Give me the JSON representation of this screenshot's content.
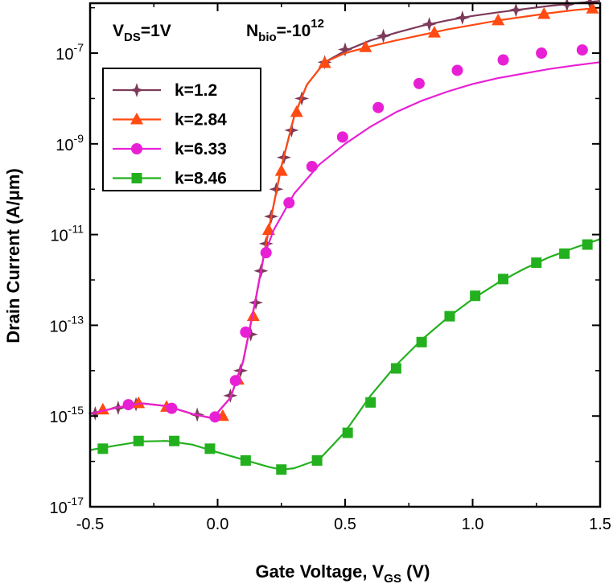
{
  "chart_data": {
    "type": "line",
    "xlabel": "Gate Voltage, V",
    "xlabel_sub": "GS",
    "xlabel_unit": " (V)",
    "ylabel": "Drain Current  (A/μm)",
    "xlim": [
      -0.5,
      1.5
    ],
    "ylim_log10": [
      -17,
      -5.9
    ],
    "yscale": "log",
    "x_ticks": [
      -0.5,
      0.0,
      0.5,
      1.0,
      1.5
    ],
    "x_tick_labels": [
      "-0.5",
      "0.0",
      "0.5",
      "1.0",
      "1.5"
    ],
    "y_ticks_log10": [
      -17,
      -15,
      -13,
      -11,
      -9,
      -7
    ],
    "y_tick_labels": [
      {
        "base": "10",
        "exp": "-17"
      },
      {
        "base": "10",
        "exp": "-15"
      },
      {
        "base": "10",
        "exp": "-13"
      },
      {
        "base": "10",
        "exp": "-11"
      },
      {
        "base": "10",
        "exp": "-9"
      },
      {
        "base": "10",
        "exp": "-7"
      }
    ],
    "annotations": [
      {
        "main": "V",
        "sub": "DS",
        "rest": "=1V"
      },
      {
        "main": "N",
        "sub": "bio",
        "rest": "=-10",
        "sup": "12"
      }
    ],
    "legend_position": "upper-left",
    "series": [
      {
        "name": "k=1.2",
        "color": "#7d3a5a",
        "marker": "star4",
        "curve": [
          [
            -0.5,
            -14.95
          ],
          [
            -0.4,
            -14.82
          ],
          [
            -0.3,
            -14.72
          ],
          [
            -0.2,
            -14.78
          ],
          [
            -0.1,
            -14.95
          ],
          [
            -0.02,
            -15.05
          ],
          [
            0.05,
            -14.6
          ],
          [
            0.1,
            -13.8
          ],
          [
            0.15,
            -12.4
          ],
          [
            0.2,
            -10.9
          ],
          [
            0.25,
            -9.5
          ],
          [
            0.3,
            -8.4
          ],
          [
            0.35,
            -7.7
          ],
          [
            0.42,
            -7.2
          ],
          [
            0.5,
            -6.95
          ],
          [
            0.6,
            -6.72
          ],
          [
            0.7,
            -6.55
          ],
          [
            0.8,
            -6.4
          ],
          [
            0.9,
            -6.28
          ],
          [
            1.0,
            -6.18
          ],
          [
            1.1,
            -6.1
          ],
          [
            1.2,
            -6.03
          ],
          [
            1.3,
            -5.96
          ],
          [
            1.4,
            -5.9
          ],
          [
            1.5,
            -5.85
          ]
        ],
        "markers": [
          [
            -0.48,
            -14.94
          ],
          [
            -0.39,
            -14.82
          ],
          [
            -0.32,
            -14.74
          ],
          [
            -0.08,
            -14.97
          ],
          [
            0.05,
            -14.55
          ],
          [
            0.09,
            -14.0
          ],
          [
            0.13,
            -13.2
          ],
          [
            0.15,
            -12.5
          ],
          [
            0.17,
            -11.8
          ],
          [
            0.19,
            -11.2
          ],
          [
            0.21,
            -10.6
          ],
          [
            0.23,
            -10.0
          ],
          [
            0.26,
            -9.3
          ],
          [
            0.29,
            -8.7
          ],
          [
            0.33,
            -8.0
          ],
          [
            0.42,
            -7.2
          ],
          [
            0.5,
            -6.92
          ],
          [
            0.65,
            -6.62
          ],
          [
            0.83,
            -6.36
          ],
          [
            0.96,
            -6.22
          ],
          [
            1.17,
            -6.05
          ],
          [
            1.37,
            -5.93
          ],
          [
            1.46,
            -5.88
          ]
        ]
      },
      {
        "name": "k=2.84",
        "color": "#ff4a12",
        "marker": "triangle",
        "curve": [
          [
            -0.5,
            -14.95
          ],
          [
            -0.4,
            -14.82
          ],
          [
            -0.3,
            -14.72
          ],
          [
            -0.2,
            -14.78
          ],
          [
            -0.1,
            -14.95
          ],
          [
            -0.02,
            -15.05
          ],
          [
            0.05,
            -14.6
          ],
          [
            0.1,
            -13.8
          ],
          [
            0.15,
            -12.4
          ],
          [
            0.2,
            -10.9
          ],
          [
            0.25,
            -9.5
          ],
          [
            0.3,
            -8.4
          ],
          [
            0.35,
            -7.7
          ],
          [
            0.42,
            -7.2
          ],
          [
            0.5,
            -7.0
          ],
          [
            0.6,
            -6.85
          ],
          [
            0.7,
            -6.72
          ],
          [
            0.8,
            -6.6
          ],
          [
            0.9,
            -6.48
          ],
          [
            1.0,
            -6.38
          ],
          [
            1.1,
            -6.28
          ],
          [
            1.2,
            -6.2
          ],
          [
            1.3,
            -6.12
          ],
          [
            1.4,
            -6.05
          ],
          [
            1.5,
            -6.0
          ]
        ],
        "markers": [
          [
            -0.45,
            -14.86
          ],
          [
            -0.31,
            -14.72
          ],
          [
            -0.2,
            -14.8
          ],
          [
            0.02,
            -15.0
          ],
          [
            0.08,
            -14.2
          ],
          [
            0.14,
            -12.8
          ],
          [
            0.2,
            -10.9
          ],
          [
            0.25,
            -9.6
          ],
          [
            0.31,
            -8.3
          ],
          [
            0.42,
            -7.22
          ],
          [
            0.58,
            -6.87
          ],
          [
            0.85,
            -6.55
          ],
          [
            1.1,
            -6.28
          ],
          [
            1.28,
            -6.14
          ],
          [
            1.47,
            -6.02
          ]
        ]
      },
      {
        "name": "k=6.33",
        "color": "#e820d5",
        "marker": "circle",
        "curve": [
          [
            -0.5,
            -14.95
          ],
          [
            -0.4,
            -14.82
          ],
          [
            -0.3,
            -14.72
          ],
          [
            -0.2,
            -14.78
          ],
          [
            -0.1,
            -14.95
          ],
          [
            -0.02,
            -15.05
          ],
          [
            0.05,
            -14.6
          ],
          [
            0.1,
            -13.8
          ],
          [
            0.15,
            -12.4
          ],
          [
            0.18,
            -11.5
          ],
          [
            0.22,
            -10.9
          ],
          [
            0.3,
            -10.1
          ],
          [
            0.4,
            -9.45
          ],
          [
            0.5,
            -9.0
          ],
          [
            0.6,
            -8.62
          ],
          [
            0.7,
            -8.3
          ],
          [
            0.8,
            -8.05
          ],
          [
            0.9,
            -7.85
          ],
          [
            1.0,
            -7.68
          ],
          [
            1.1,
            -7.55
          ],
          [
            1.2,
            -7.45
          ],
          [
            1.3,
            -7.35
          ],
          [
            1.4,
            -7.27
          ],
          [
            1.5,
            -7.2
          ]
        ],
        "markers": [
          [
            -0.35,
            -14.75
          ],
          [
            -0.18,
            -14.83
          ],
          [
            -0.01,
            -15.02
          ],
          [
            0.07,
            -14.22
          ],
          [
            0.11,
            -13.15
          ],
          [
            0.19,
            -11.4
          ],
          [
            0.28,
            -10.3
          ],
          [
            0.37,
            -9.5
          ],
          [
            0.49,
            -8.85
          ],
          [
            0.63,
            -8.2
          ],
          [
            0.79,
            -7.67
          ],
          [
            0.94,
            -7.38
          ],
          [
            1.12,
            -7.15
          ],
          [
            1.27,
            -7.0
          ],
          [
            1.43,
            -6.93
          ]
        ]
      },
      {
        "name": "k=8.46",
        "color": "#23b01e",
        "marker": "square",
        "curve": [
          [
            -0.5,
            -15.75
          ],
          [
            -0.4,
            -15.65
          ],
          [
            -0.3,
            -15.56
          ],
          [
            -0.2,
            -15.55
          ],
          [
            -0.1,
            -15.63
          ],
          [
            0.0,
            -15.8
          ],
          [
            0.1,
            -15.96
          ],
          [
            0.2,
            -16.12
          ],
          [
            0.25,
            -16.18
          ],
          [
            0.3,
            -16.15
          ],
          [
            0.4,
            -15.95
          ],
          [
            0.5,
            -15.35
          ],
          [
            0.6,
            -14.55
          ],
          [
            0.7,
            -13.88
          ],
          [
            0.8,
            -13.32
          ],
          [
            0.9,
            -12.84
          ],
          [
            1.0,
            -12.42
          ],
          [
            1.1,
            -12.06
          ],
          [
            1.2,
            -11.76
          ],
          [
            1.3,
            -11.5
          ],
          [
            1.4,
            -11.29
          ],
          [
            1.5,
            -11.1
          ]
        ],
        "markers": [
          [
            -0.45,
            -15.72
          ],
          [
            -0.31,
            -15.55
          ],
          [
            -0.17,
            -15.55
          ],
          [
            -0.03,
            -15.72
          ],
          [
            0.11,
            -15.98
          ],
          [
            0.25,
            -16.18
          ],
          [
            0.39,
            -15.98
          ],
          [
            0.51,
            -15.37
          ],
          [
            0.6,
            -14.7
          ],
          [
            0.7,
            -13.95
          ],
          [
            0.8,
            -13.37
          ],
          [
            0.91,
            -12.8
          ],
          [
            1.01,
            -12.35
          ],
          [
            1.12,
            -11.98
          ],
          [
            1.25,
            -11.62
          ],
          [
            1.36,
            -11.42
          ],
          [
            1.45,
            -11.22
          ]
        ]
      }
    ]
  }
}
